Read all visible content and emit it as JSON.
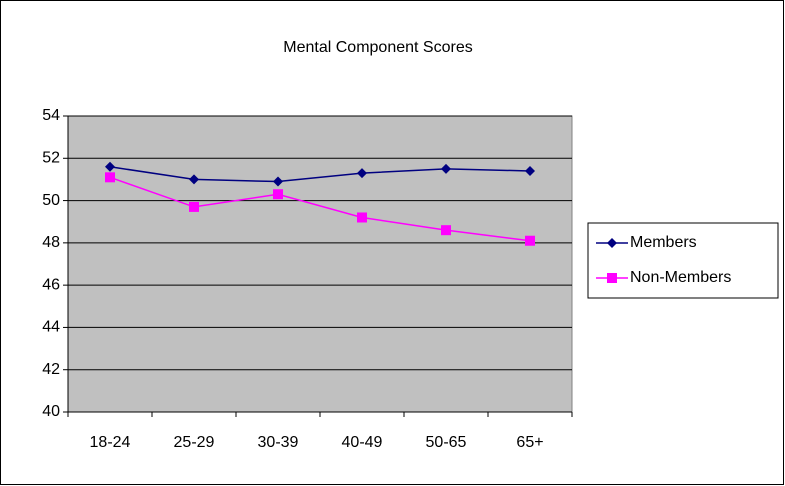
{
  "chart_data": {
    "type": "line",
    "title": "Mental Component Scores",
    "categories": [
      "18-24",
      "25-29",
      "30-39",
      "40-49",
      "50-65",
      "65+"
    ],
    "series": [
      {
        "name": "Members",
        "color": "#000080",
        "marker": "diamond",
        "values": [
          51.6,
          51.0,
          50.9,
          51.3,
          51.5,
          51.4
        ]
      },
      {
        "name": "Non-Members",
        "color": "#ff00ff",
        "marker": "square",
        "values": [
          51.1,
          49.7,
          50.3,
          49.2,
          48.6,
          48.1
        ]
      }
    ],
    "ylim": [
      40,
      54
    ],
    "yticks": [
      40,
      42,
      44,
      46,
      48,
      50,
      52,
      54
    ],
    "grid": true,
    "legend": "right"
  }
}
